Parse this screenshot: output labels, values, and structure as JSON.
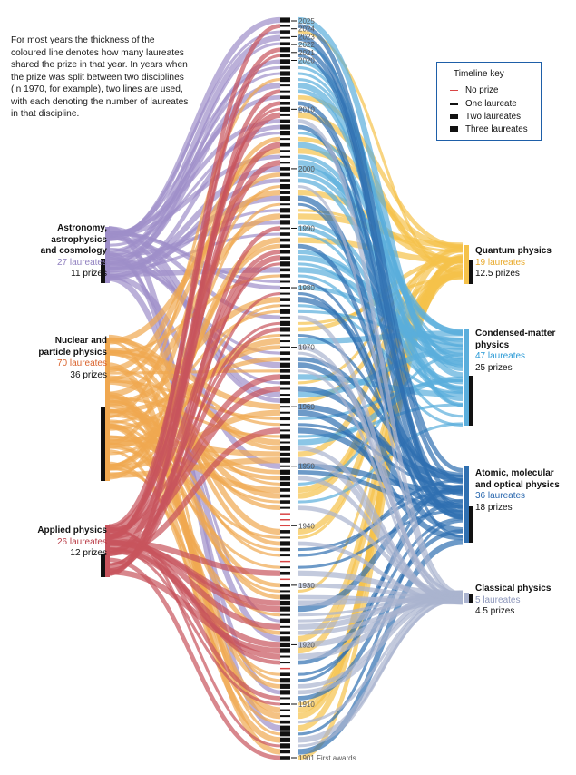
{
  "intro_text": "For most years the thickness of the coloured line denotes how many laureates shared the prize in that year. In years when the prize was split between two disciplines (in 1970, for example), two lines are used, with each denoting the number of laureates in that discipline.",
  "key": {
    "title": "Timeline key",
    "items": [
      {
        "label": "No prize",
        "laureates": 0
      },
      {
        "label": "One laureate",
        "laureates": 1
      },
      {
        "label": "Two laureates",
        "laureates": 2
      },
      {
        "label": "Three laureates",
        "laureates": 3
      }
    ]
  },
  "colors": {
    "astronomy": "#9e8ec9",
    "nuclear": "#f0a850",
    "applied": "#c8545d",
    "quantum": "#f5c24a",
    "condensed": "#5aaedc",
    "atomic": "#2f6fb0",
    "classical": "#aab3cf",
    "no_prize": "#d94545",
    "timeline": "#111111",
    "key_border": "#1e5fa8"
  },
  "left_categories": [
    {
      "id": "astronomy",
      "name_lines": [
        "Astronomy,",
        "astrophysics",
        "and cosmology"
      ],
      "laureates": "27 laureates",
      "prizes": "11 prizes"
    },
    {
      "id": "nuclear",
      "name_lines": [
        "Nuclear and",
        "particle physics"
      ],
      "laureates": "70 laureates",
      "prizes": "36 prizes"
    },
    {
      "id": "applied",
      "name_lines": [
        "Applied physics"
      ],
      "laureates": "26 laureates",
      "prizes": "12 prizes"
    }
  ],
  "right_categories": [
    {
      "id": "quantum",
      "name_lines": [
        "Quantum physics"
      ],
      "laureates": "19 laureates",
      "prizes": "12.5 prizes"
    },
    {
      "id": "condensed",
      "name_lines": [
        "Condensed-matter",
        "physics"
      ],
      "laureates": "47 laureates",
      "prizes": "25 prizes"
    },
    {
      "id": "atomic",
      "name_lines": [
        "Atomic, molecular",
        "and optical physics"
      ],
      "laureates": "36 laureates",
      "prizes": "18 prizes"
    },
    {
      "id": "classical",
      "name_lines": [
        "Classical physics"
      ],
      "laureates": "5 laureates",
      "prizes": "4.5 prizes"
    }
  ],
  "timeline_labels": [
    "2025",
    "2024",
    "2023",
    "2022",
    "2021",
    "2020",
    "2010",
    "2000",
    "1990",
    "1980",
    "1970",
    "1960",
    "1950",
    "1940",
    "1930",
    "1920",
    "1910",
    "1901 First awards"
  ],
  "no_prize_years": [
    1916,
    1931,
    1934,
    1940,
    1941,
    1942
  ]
}
